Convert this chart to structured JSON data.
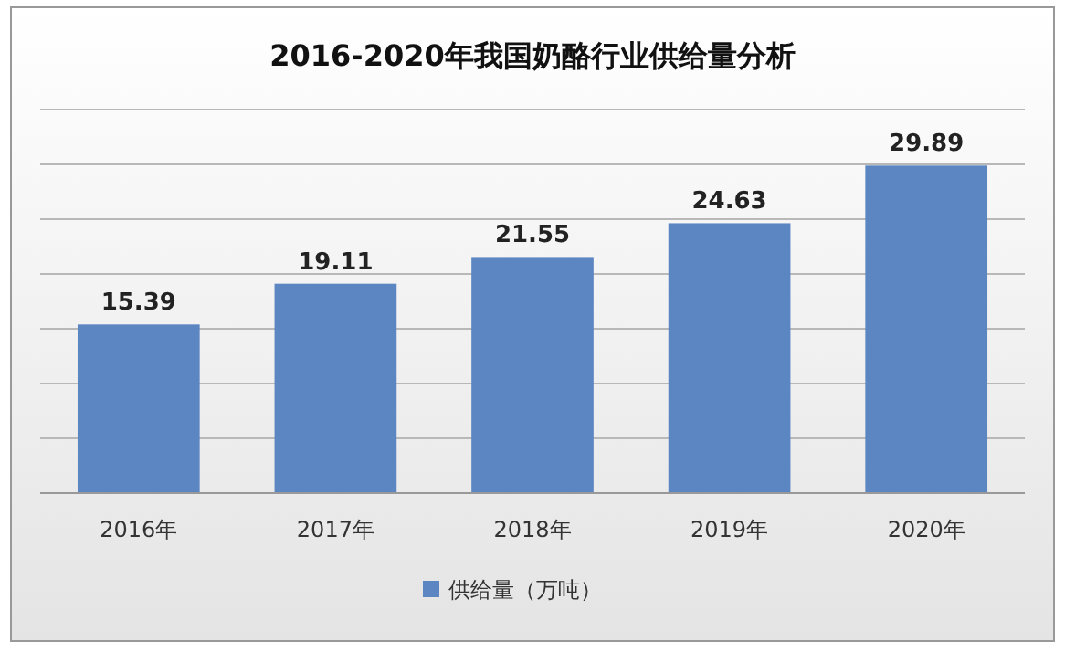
{
  "chart_data": {
    "type": "bar",
    "title": "2016-2020年我国奶酪行业供给量分析",
    "categories": [
      "2016年",
      "2017年",
      "2018年",
      "2019年",
      "2020年"
    ],
    "series": [
      {
        "name": "供给量（万吨）",
        "color": "#5b86c2",
        "values": [
          15.39,
          19.11,
          21.55,
          24.63,
          29.89
        ]
      }
    ],
    "ylim": [
      0,
      35
    ],
    "yticks": [
      {
        "value": 0,
        "label": null
      },
      {
        "value": 5,
        "label": null
      },
      {
        "value": 10,
        "label": null
      },
      {
        "value": 15,
        "label": null
      },
      {
        "value": 20,
        "label": null
      },
      {
        "value": 25,
        "label": null
      },
      {
        "value": 30,
        "label": null
      },
      {
        "value": 35,
        "label": null
      }
    ],
    "grid": "y",
    "data_labels": true,
    "legend": "bottom",
    "tick_labels": "x"
  }
}
